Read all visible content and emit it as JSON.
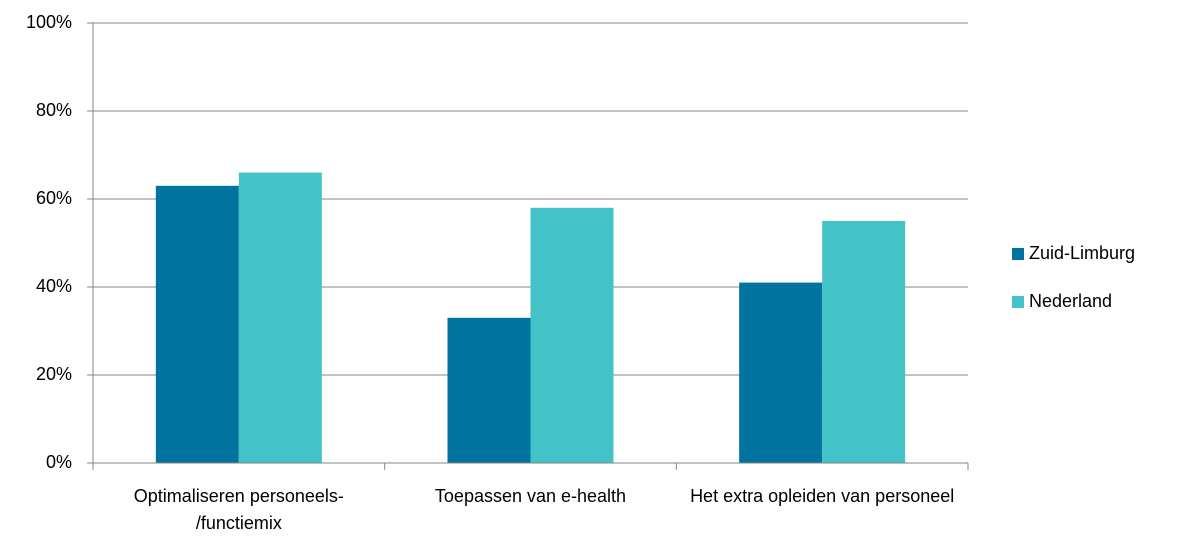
{
  "chart_data": {
    "type": "bar",
    "categories": [
      "Optimaliseren personeels-/functiemix",
      "Toepassen van e-health",
      "Het extra opleiden van personeel"
    ],
    "series": [
      {
        "name": "Zuid-Limburg",
        "color": "#00739e",
        "values": [
          63,
          33,
          41
        ]
      },
      {
        "name": "Nederland",
        "color": "#43c2c7",
        "values": [
          66,
          58,
          55
        ]
      }
    ],
    "ylim": [
      0,
      100
    ],
    "yticks": [
      {
        "value": 0,
        "label": "0%"
      },
      {
        "value": 20,
        "label": "20%"
      },
      {
        "value": 40,
        "label": "40%"
      },
      {
        "value": 60,
        "label": "60%"
      },
      {
        "value": 80,
        "label": "80%"
      },
      {
        "value": 100,
        "label": "100%"
      }
    ],
    "grid": true,
    "legend": "right"
  }
}
